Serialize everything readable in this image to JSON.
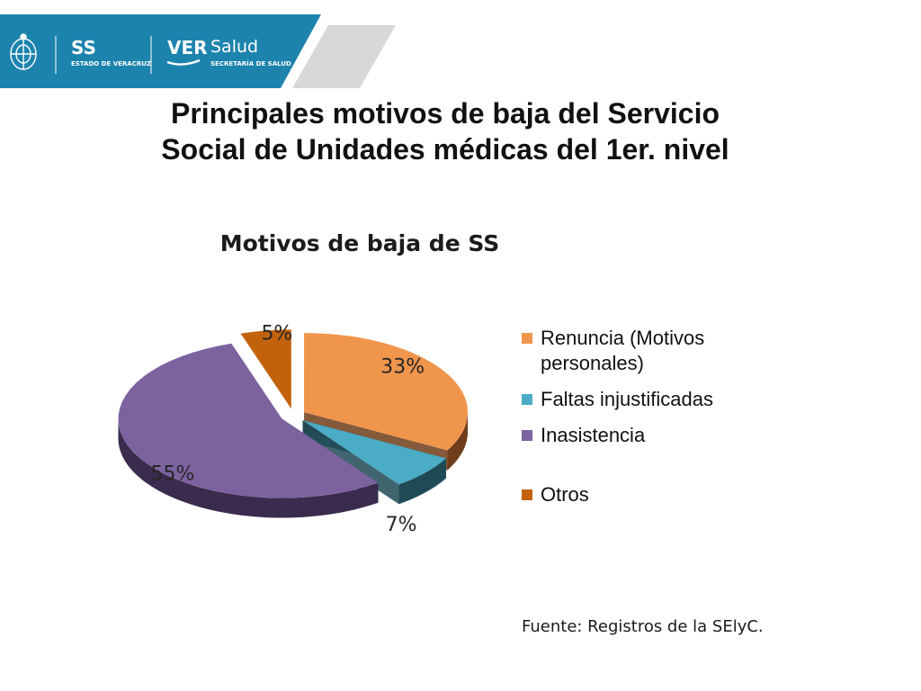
{
  "header": {
    "left_org_abbr": "SS",
    "left_org_name": "ESTADO DE VERACRUZ",
    "right_org_prefix": "VER",
    "right_org_abbr": "Salud",
    "right_org_name": "SECRETARÍA DE SALUD",
    "band_color": "#1c83ad",
    "accent_color": "#d8d8d8"
  },
  "slide": {
    "title_line1": "Principales motivos de baja del Servicio",
    "title_line2": "Social de Unidades médicas del 1er. nivel",
    "source": "Fuente: Registros de la SElyC."
  },
  "chart_data": {
    "type": "pie",
    "title": "Motivos de baja de SS",
    "three_d": true,
    "exploded": true,
    "legend_position": "right",
    "slices": [
      {
        "label": "Renuncia (Motivos personales)",
        "value": 33,
        "display": "33%",
        "color": "#f0954c",
        "side_color": "#6e3d19"
      },
      {
        "label": "Faltas injustificadas",
        "value": 7,
        "display": "7%",
        "color": "#4aacc5",
        "side_color": "#1f4a56"
      },
      {
        "label": "Inasistencia",
        "value": 55,
        "display": "55%",
        "color": "#7d62a0",
        "side_color": "#3a2c4e"
      },
      {
        "label": "Otros",
        "value": 5,
        "display": "5%",
        "color": "#c2620c",
        "side_color": "#4f2604"
      }
    ]
  }
}
